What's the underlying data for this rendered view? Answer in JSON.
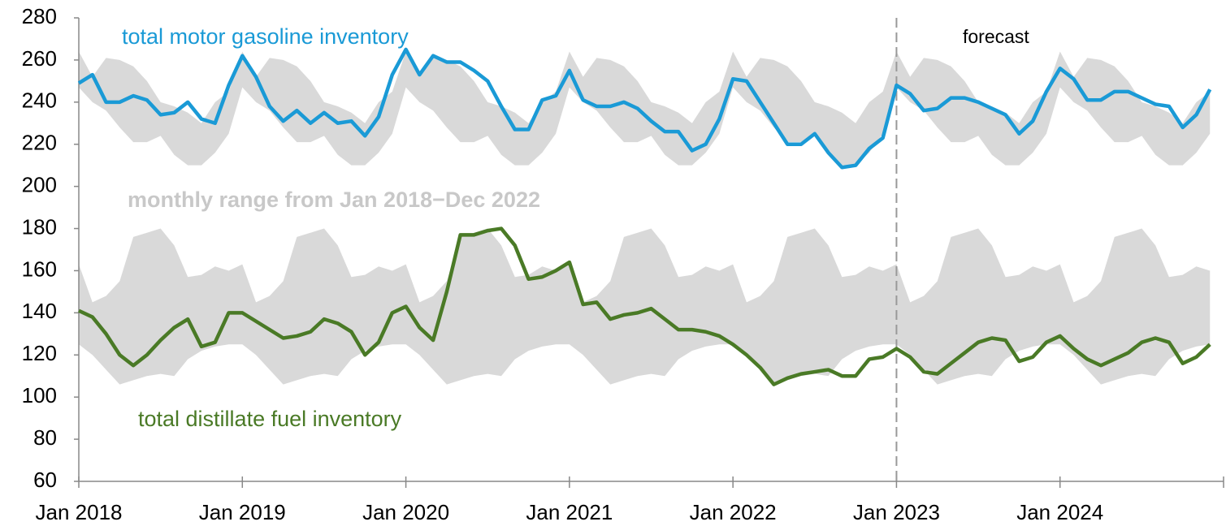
{
  "chart_data": {
    "type": "line",
    "x": [
      "2018-01",
      "2018-02",
      "2018-03",
      "2018-04",
      "2018-05",
      "2018-06",
      "2018-07",
      "2018-08",
      "2018-09",
      "2018-10",
      "2018-11",
      "2018-12",
      "2019-01",
      "2019-02",
      "2019-03",
      "2019-04",
      "2019-05",
      "2019-06",
      "2019-07",
      "2019-08",
      "2019-09",
      "2019-10",
      "2019-11",
      "2019-12",
      "2020-01",
      "2020-02",
      "2020-03",
      "2020-04",
      "2020-05",
      "2020-06",
      "2020-07",
      "2020-08",
      "2020-09",
      "2020-10",
      "2020-11",
      "2020-12",
      "2021-01",
      "2021-02",
      "2021-03",
      "2021-04",
      "2021-05",
      "2021-06",
      "2021-07",
      "2021-08",
      "2021-09",
      "2021-10",
      "2021-11",
      "2021-12",
      "2022-01",
      "2022-02",
      "2022-03",
      "2022-04",
      "2022-05",
      "2022-06",
      "2022-07",
      "2022-08",
      "2022-09",
      "2022-10",
      "2022-11",
      "2022-12",
      "2023-01",
      "2023-02",
      "2023-03",
      "2023-04",
      "2023-05",
      "2023-06",
      "2023-07",
      "2023-08",
      "2023-09",
      "2023-10",
      "2023-11",
      "2023-12",
      "2024-01",
      "2024-02",
      "2024-03",
      "2024-04",
      "2024-05",
      "2024-06",
      "2024-07",
      "2024-08",
      "2024-09",
      "2024-10",
      "2024-11",
      "2024-12"
    ],
    "series": [
      {
        "name": "total motor gasoline inventory",
        "color": "#1a9ad6",
        "values": [
          249,
          253,
          240,
          240,
          243,
          241,
          234,
          235,
          240,
          232,
          230,
          248,
          262,
          252,
          238,
          231,
          236,
          230,
          235,
          230,
          231,
          224,
          233,
          253,
          265,
          253,
          262,
          259,
          259,
          255,
          250,
          238,
          227,
          227,
          241,
          243,
          255,
          241,
          238,
          238,
          240,
          237,
          231,
          226,
          226,
          217,
          220,
          232,
          251,
          250,
          240,
          230,
          220,
          220,
          225,
          216,
          209,
          210,
          218,
          223,
          248,
          244,
          236,
          237,
          242,
          242,
          240,
          237,
          234,
          225,
          231,
          245,
          256,
          251,
          241,
          241,
          245,
          245,
          242,
          239,
          238,
          228,
          234,
          246
        ]
      },
      {
        "name": "total distillate fuel inventory",
        "color": "#4a7a26",
        "values": [
          141,
          138,
          130,
          120,
          115,
          120,
          127,
          133,
          137,
          124,
          126,
          140,
          140,
          136,
          132,
          128,
          129,
          131,
          137,
          135,
          131,
          120,
          126,
          140,
          143,
          133,
          127,
          150,
          177,
          177,
          179,
          180,
          172,
          156,
          157,
          160,
          164,
          144,
          145,
          137,
          139,
          140,
          142,
          137,
          132,
          132,
          131,
          129,
          125,
          120,
          114,
          106,
          109,
          111,
          112,
          113,
          110,
          110,
          118,
          119,
          123,
          119,
          112,
          111,
          116,
          121,
          126,
          128,
          127,
          117,
          119,
          126,
          129,
          123,
          118,
          115,
          118,
          121,
          126,
          128,
          126,
          116,
          119,
          125
        ]
      }
    ],
    "range_label": "monthly range from Jan 2018−Dec 2022",
    "band_color": "#d9d9d9",
    "bands": [
      {
        "high": [
          264,
          252,
          261,
          260,
          257,
          250,
          240,
          238,
          235,
          230,
          240,
          245,
          264,
          252,
          261,
          260,
          257,
          250,
          240,
          238,
          235,
          230,
          240,
          245,
          264,
          252,
          261,
          260,
          257,
          250,
          240,
          238,
          235,
          230,
          240,
          245,
          264,
          252,
          261,
          260,
          257,
          250,
          240,
          238,
          235,
          230,
          240,
          245,
          264,
          252,
          261,
          260,
          257,
          250,
          240,
          238,
          235,
          230,
          240,
          245,
          264,
          252,
          261,
          260,
          257,
          250,
          240,
          238,
          235,
          230,
          240,
          245,
          264,
          252,
          261,
          260,
          257,
          250,
          240,
          238,
          235,
          230,
          240,
          245
        ],
        "low": [
          247,
          240,
          236,
          228,
          221,
          221,
          224,
          215,
          210,
          210,
          216,
          225,
          247,
          240,
          236,
          228,
          221,
          221,
          224,
          215,
          210,
          210,
          216,
          225,
          247,
          240,
          236,
          228,
          221,
          221,
          224,
          215,
          210,
          210,
          216,
          225,
          247,
          240,
          236,
          228,
          221,
          221,
          224,
          215,
          210,
          210,
          216,
          225,
          247,
          240,
          236,
          228,
          221,
          221,
          224,
          215,
          210,
          210,
          216,
          225,
          247,
          240,
          236,
          228,
          221,
          221,
          224,
          215,
          210,
          210,
          216,
          225,
          247,
          240,
          236,
          228,
          221,
          221,
          224,
          215,
          210,
          210,
          216,
          225
        ]
      },
      {
        "high": [
          163,
          145,
          148,
          155,
          176,
          178,
          180,
          172,
          157,
          158,
          162,
          160,
          163,
          145,
          148,
          155,
          176,
          178,
          180,
          172,
          157,
          158,
          162,
          160,
          163,
          145,
          148,
          155,
          176,
          178,
          180,
          172,
          157,
          158,
          162,
          160,
          163,
          145,
          148,
          155,
          176,
          178,
          180,
          172,
          157,
          158,
          162,
          160,
          163,
          145,
          148,
          155,
          176,
          178,
          180,
          172,
          157,
          158,
          162,
          160,
          163,
          145,
          148,
          155,
          176,
          178,
          180,
          172,
          157,
          158,
          162,
          160,
          163,
          145,
          148,
          155,
          176,
          178,
          180,
          172,
          157,
          158,
          162,
          160
        ],
        "low": [
          125,
          120,
          113,
          106,
          108,
          110,
          111,
          110,
          118,
          122,
          124,
          125,
          125,
          120,
          113,
          106,
          108,
          110,
          111,
          110,
          118,
          122,
          124,
          125,
          125,
          120,
          113,
          106,
          108,
          110,
          111,
          110,
          118,
          122,
          124,
          125,
          125,
          120,
          113,
          106,
          108,
          110,
          111,
          110,
          118,
          122,
          124,
          125,
          125,
          120,
          113,
          106,
          108,
          110,
          111,
          110,
          118,
          122,
          124,
          125,
          125,
          120,
          113,
          106,
          108,
          110,
          111,
          110,
          118,
          122,
          124,
          125,
          125,
          120,
          113,
          106,
          108,
          110,
          111,
          110,
          118,
          122,
          124,
          125
        ]
      }
    ],
    "forecast_label": "forecast",
    "forecast_start": "2023-01",
    "xlim": [
      "2018-01",
      "2025-01"
    ],
    "xticks": [
      {
        "value": "2018-01",
        "label": "Jan 2018"
      },
      {
        "value": "2019-01",
        "label": "Jan 2019"
      },
      {
        "value": "2020-01",
        "label": "Jan 2020"
      },
      {
        "value": "2021-01",
        "label": "Jan 2021"
      },
      {
        "value": "2022-01",
        "label": "Jan 2022"
      },
      {
        "value": "2023-01",
        "label": "Jan 2023"
      },
      {
        "value": "2024-01",
        "label": "Jan 2024"
      }
    ],
    "ylim": [
      60,
      280
    ],
    "yticks": [
      60,
      80,
      100,
      120,
      140,
      160,
      180,
      200,
      220,
      240,
      260,
      280
    ]
  }
}
